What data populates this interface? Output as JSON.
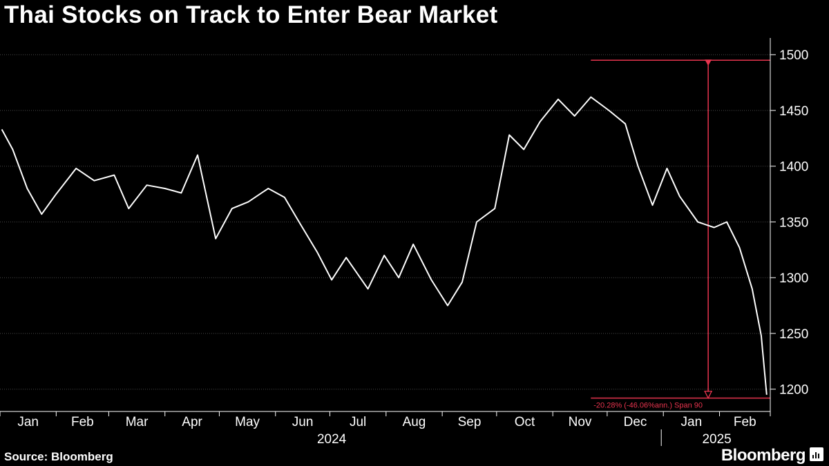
{
  "title": "Thai Stocks on Track to Enter Bear Market",
  "source": "Source: Bloomberg",
  "brand": "Bloomberg",
  "brand_icon": "bloomberg-chart-icon",
  "colors": {
    "background": "#000000",
    "line": "#ffffff",
    "annotation": "#e8344e",
    "grid": "#4a4a4a"
  },
  "chart_data": {
    "type": "line",
    "title": "Thai Stocks on Track to Enter Bear Market",
    "xlabel": "",
    "ylabel": "",
    "ylim": [
      1180,
      1515
    ],
    "yticks": [
      1200,
      1250,
      1300,
      1350,
      1400,
      1450,
      1500
    ],
    "y_axis_side": "right",
    "grid": "horizontal dotted",
    "months": [
      "Jan",
      "Feb",
      "Mar",
      "Apr",
      "May",
      "Jun",
      "Jul",
      "Aug",
      "Sep",
      "Oct",
      "Nov",
      "Dec",
      "Jan",
      "Feb"
    ],
    "years": [
      "2024",
      "2025"
    ],
    "x": [
      "2024-01-02",
      "2024-01-08",
      "2024-01-16",
      "2024-01-24",
      "2024-02-01",
      "2024-02-12",
      "2024-02-22",
      "2024-03-04",
      "2024-03-12",
      "2024-03-22",
      "2024-04-01",
      "2024-04-10",
      "2024-04-19",
      "2024-04-29",
      "2024-05-08",
      "2024-05-17",
      "2024-05-28",
      "2024-06-06",
      "2024-06-14",
      "2024-06-24",
      "2024-07-02",
      "2024-07-10",
      "2024-07-22",
      "2024-07-31",
      "2024-08-08",
      "2024-08-16",
      "2024-08-26",
      "2024-09-04",
      "2024-09-12",
      "2024-09-20",
      "2024-09-30",
      "2024-10-08",
      "2024-10-16",
      "2024-10-25",
      "2024-11-04",
      "2024-11-13",
      "2024-11-22",
      "2024-12-02",
      "2024-12-11",
      "2024-12-18",
      "2024-12-26",
      "2025-01-03",
      "2025-01-10",
      "2025-01-20",
      "2025-01-29",
      "2025-02-05",
      "2025-02-12",
      "2025-02-19",
      "2025-02-24",
      "2025-02-27"
    ],
    "series": [
      {
        "values": [
          1433,
          1415,
          1380,
          1357,
          1375,
          1398,
          1387,
          1392,
          1362,
          1383,
          1380,
          1376,
          1410,
          1335,
          1362,
          1368,
          1380,
          1372,
          1350,
          1323,
          1298,
          1318,
          1290,
          1320,
          1300,
          1330,
          1298,
          1275,
          1296,
          1350,
          1362,
          1428,
          1415,
          1440,
          1460,
          1445,
          1462,
          1450,
          1438,
          1400,
          1365,
          1398,
          1373,
          1350,
          1345,
          1350,
          1327,
          1290,
          1248,
          1195
        ]
      }
    ],
    "annotation": {
      "high": 1495,
      "low": 1192,
      "label": "-20.28% (-46.06%ann.) Span 90"
    }
  }
}
